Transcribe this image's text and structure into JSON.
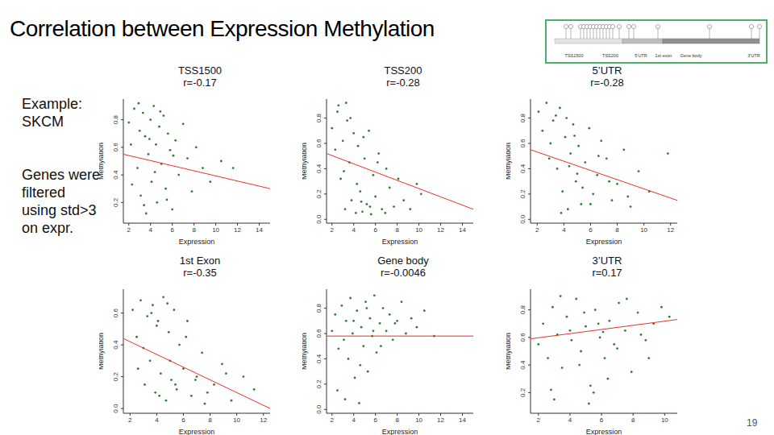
{
  "title": "Correlation between Expression Methylation",
  "side_text": {
    "example": [
      "Example:",
      "SKCM"
    ],
    "note": [
      "Genes were",
      "filtered",
      "using std>3",
      "on expr."
    ]
  },
  "gene_diagram": {
    "labels": [
      "TSS1500",
      "TSS200",
      "5'UTR",
      "1st exon",
      "Gene body",
      "3'UTR"
    ]
  },
  "page": "19",
  "chart_data": [
    {
      "type": "scatter",
      "title": "TSS1500",
      "subtitle": "r=-0.17",
      "x_label": "Expression",
      "y_label": "Methylation",
      "color": "#2e7d32",
      "marker": "circle",
      "x": [
        2.0,
        2.2,
        2.5,
        2.8,
        3.0,
        3.1,
        3.3,
        3.5,
        3.6,
        3.8,
        4.0,
        4.1,
        4.3,
        4.5,
        4.6,
        4.8,
        5.0,
        5.2,
        5.4,
        5.6,
        5.8,
        6.0,
        6.3,
        6.6,
        7.0,
        7.4,
        7.8,
        8.2,
        8.8,
        9.5,
        10.5,
        2.3,
        2.9,
        3.4,
        3.9,
        4.4,
        4.9,
        5.5,
        6.1,
        11.6
      ],
      "values": [
        0.78,
        0.62,
        0.88,
        0.45,
        0.72,
        0.25,
        0.85,
        0.68,
        0.12,
        0.55,
        0.8,
        0.35,
        0.9,
        0.62,
        0.2,
        0.75,
        0.48,
        0.83,
        0.3,
        0.7,
        0.58,
        0.15,
        0.65,
        0.4,
        0.77,
        0.52,
        0.28,
        0.6,
        0.45,
        0.35,
        0.5,
        0.33,
        0.92,
        0.18,
        0.66,
        0.42,
        0.86,
        0.22,
        0.54,
        0.45
      ],
      "trend": {
        "x": [
          1.5,
          15
        ],
        "values": [
          0.55,
          0.3
        ],
        "color": "#e8332a"
      },
      "xlim": [
        1.5,
        15
      ],
      "xticks": [
        2,
        4,
        6,
        8,
        10,
        12,
        14
      ],
      "ylim": [
        0.05,
        0.95
      ],
      "yticks": [
        0.2,
        0.4,
        0.6,
        0.8
      ]
    },
    {
      "type": "scatter",
      "title": "TSS200",
      "subtitle": "r=-0.28",
      "x_label": "Expression",
      "y_label": "Methylation",
      "color": "#2e7d32",
      "marker": "circle",
      "x": [
        2.0,
        2.3,
        2.5,
        2.8,
        3.0,
        3.2,
        3.4,
        3.6,
        3.8,
        4.0,
        4.2,
        4.4,
        4.6,
        4.8,
        5.0,
        5.2,
        5.4,
        5.6,
        5.8,
        6.0,
        6.3,
        6.6,
        7.0,
        7.3,
        7.7,
        8.1,
        8.6,
        9.2,
        9.8,
        2.6,
        3.1,
        3.7,
        4.3,
        4.9,
        5.5,
        6.2,
        6.9,
        10.2,
        3.3,
        4.7
      ],
      "values": [
        0.72,
        0.55,
        0.85,
        0.32,
        0.62,
        0.08,
        0.78,
        0.45,
        0.15,
        0.68,
        0.05,
        0.58,
        0.22,
        0.06,
        0.48,
        0.12,
        0.7,
        0.04,
        0.35,
        0.18,
        0.52,
        0.08,
        0.4,
        0.25,
        0.1,
        0.32,
        0.15,
        0.08,
        0.28,
        0.9,
        0.38,
        0.8,
        0.28,
        0.65,
        0.1,
        0.45,
        0.05,
        0.2,
        0.92,
        0.14
      ],
      "trend": {
        "x": [
          1.5,
          15
        ],
        "values": [
          0.52,
          0.08
        ],
        "color": "#e8332a"
      },
      "xlim": [
        1.5,
        15
      ],
      "xticks": [
        2,
        4,
        6,
        8,
        10,
        12,
        14
      ],
      "ylim": [
        -0.03,
        0.95
      ],
      "yticks": [
        {
          "value": 0,
          "label": "0.0"
        },
        0.2,
        0.4,
        0.6,
        0.8
      ]
    },
    {
      "type": "scatter",
      "title": "5’UTR",
      "subtitle": "r=-0.28",
      "x_label": "Expression",
      "y_label": "Methylation",
      "color": "#2e7d32",
      "marker": "circle",
      "x": [
        2.1,
        2.4,
        2.7,
        3.0,
        3.2,
        3.5,
        3.7,
        3.9,
        4.1,
        4.3,
        4.5,
        4.7,
        4.9,
        5.1,
        5.3,
        5.6,
        5.9,
        6.2,
        6.5,
        6.8,
        7.2,
        7.6,
        8.0,
        8.5,
        9.0,
        9.6,
        10.4,
        11.8,
        2.9,
        3.4,
        3.8,
        4.4,
        4.8,
        5.4,
        6.0,
        6.6,
        7.4,
        8.8,
        4.2,
        5.0
      ],
      "values": [
        0.85,
        0.7,
        0.92,
        0.6,
        0.78,
        0.4,
        0.88,
        0.22,
        0.65,
        0.08,
        0.52,
        0.75,
        0.3,
        0.58,
        0.12,
        0.45,
        0.72,
        0.2,
        0.35,
        0.62,
        0.48,
        0.15,
        0.28,
        0.55,
        0.1,
        0.38,
        0.22,
        0.52,
        0.48,
        0.82,
        0.05,
        0.42,
        0.66,
        0.25,
        0.12,
        0.5,
        0.3,
        0.18,
        0.8,
        0.36
      ],
      "trend": {
        "x": [
          1.5,
          12.5
        ],
        "values": [
          0.55,
          0.15
        ],
        "color": "#e8332a"
      },
      "xlim": [
        1.5,
        12.5
      ],
      "xticks": [
        2,
        4,
        6,
        8,
        10,
        12
      ],
      "ylim": [
        -0.03,
        0.95
      ],
      "yticks": [
        {
          "value": 0,
          "label": "0.0"
        },
        0.2,
        0.4,
        0.6,
        0.8
      ]
    },
    {
      "type": "scatter",
      "title": "1st Exon",
      "subtitle": "r=-0.35",
      "x_label": "Expression",
      "y_label": "Methylation",
      "color": "#2e7d32",
      "marker": "circle",
      "x": [
        2.2,
        2.5,
        2.8,
        3.1,
        3.3,
        3.5,
        3.7,
        3.9,
        4.1,
        4.3,
        4.5,
        4.7,
        4.9,
        5.1,
        5.3,
        5.5,
        5.7,
        6.0,
        6.3,
        6.6,
        7.0,
        7.4,
        7.8,
        8.3,
        8.9,
        9.6,
        10.5,
        11.3,
        3.0,
        3.6,
        4.2,
        4.8,
        5.4,
        6.2,
        6.9,
        7.6,
        2.6,
        4.0,
        5.0,
        9.2
      ],
      "values": [
        0.62,
        0.45,
        0.68,
        0.15,
        0.58,
        0.3,
        0.65,
        0.1,
        0.55,
        0.22,
        0.7,
        0.05,
        0.48,
        0.18,
        0.62,
        0.12,
        0.4,
        0.25,
        0.55,
        0.08,
        0.2,
        0.35,
        0.1,
        0.15,
        0.28,
        0.05,
        0.2,
        0.12,
        0.38,
        0.6,
        0.08,
        0.66,
        0.15,
        0.45,
        0.18,
        0.03,
        0.25,
        0.52,
        0.3,
        0.22
      ],
      "trend": {
        "x": [
          1.5,
          12.5
        ],
        "values": [
          0.44,
          0.0
        ],
        "color": "#e8332a"
      },
      "xlim": [
        1.5,
        12.5
      ],
      "xticks": [
        2,
        4,
        6,
        8,
        10,
        12
      ],
      "ylim": [
        -0.03,
        0.75
      ],
      "yticks": [
        {
          "value": 0,
          "label": "0.0"
        },
        0.2,
        0.4,
        0.6
      ]
    },
    {
      "type": "scatter",
      "title": "Gene body",
      "subtitle": "r=-0.0046",
      "x_label": "Expression",
      "y_label": "Methylation",
      "color": "#2e7d32",
      "marker": "circle",
      "x": [
        2.0,
        2.3,
        2.6,
        2.9,
        3.1,
        3.3,
        3.5,
        3.7,
        3.9,
        4.1,
        4.3,
        4.5,
        4.7,
        4.9,
        5.1,
        5.3,
        5.5,
        5.7,
        5.9,
        6.1,
        6.4,
        6.7,
        7.0,
        7.3,
        7.6,
        8.0,
        8.4,
        8.8,
        9.3,
        9.8,
        10.5,
        11.4,
        3.2,
        4.0,
        4.6,
        5.2,
        5.8,
        6.5,
        2.5,
        7.8
      ],
      "values": [
        0.62,
        0.75,
        0.48,
        0.82,
        0.55,
        0.7,
        0.4,
        0.88,
        0.6,
        0.25,
        0.78,
        0.05,
        0.65,
        0.5,
        0.85,
        0.3,
        0.72,
        0.58,
        0.9,
        0.45,
        0.68,
        0.8,
        0.62,
        0.75,
        0.55,
        0.7,
        0.85,
        0.6,
        0.72,
        0.65,
        0.78,
        0.58,
        0.08,
        0.7,
        0.35,
        0.8,
        0.62,
        0.5,
        0.15,
        0.68
      ],
      "trend": {
        "x": [
          1.5,
          15
        ],
        "values": [
          0.58,
          0.58
        ],
        "color": "#e8332a"
      },
      "xlim": [
        1.5,
        15
      ],
      "xticks": [
        2,
        4,
        6,
        8,
        10,
        12,
        14
      ],
      "ylim": [
        -0.03,
        0.95
      ],
      "yticks": [
        {
          "value": 0,
          "label": "0.0"
        },
        0.2,
        0.4,
        0.6,
        0.8
      ]
    },
    {
      "type": "scatter",
      "title": "3’UTR",
      "subtitle": "r=0.17",
      "x_label": "Expression",
      "y_label": "Methylation",
      "color": "#2e7d32",
      "marker": "circle",
      "x": [
        2.0,
        2.3,
        2.6,
        2.9,
        3.2,
        3.5,
        3.8,
        4.1,
        4.4,
        4.7,
        5.0,
        5.3,
        5.6,
        5.9,
        6.2,
        6.5,
        6.8,
        7.1,
        7.5,
        7.9,
        8.3,
        8.8,
        9.3,
        9.8,
        10.3,
        2.8,
        3.4,
        4.0,
        4.6,
        5.2,
        5.8,
        6.4,
        7.0,
        7.6,
        8.5,
        4.9,
        5.5,
        6.1,
        3.0,
        9.0
      ],
      "values": [
        0.55,
        0.7,
        0.45,
        0.82,
        0.62,
        0.38,
        0.75,
        0.58,
        0.88,
        0.5,
        0.68,
        0.25,
        0.8,
        0.6,
        0.45,
        0.72,
        0.55,
        0.85,
        0.65,
        0.35,
        0.78,
        0.58,
        0.7,
        0.82,
        0.75,
        0.22,
        0.9,
        0.65,
        0.4,
        0.12,
        0.7,
        0.3,
        0.52,
        0.88,
        0.62,
        0.78,
        0.2,
        0.64,
        0.15,
        0.45
      ],
      "trend": {
        "x": [
          1.5,
          10.8
        ],
        "values": [
          0.59,
          0.73
        ],
        "color": "#e8332a"
      },
      "xlim": [
        1.5,
        10.8
      ],
      "xticks": [
        2,
        4,
        6,
        8,
        10
      ],
      "ylim": [
        0.05,
        0.95
      ],
      "yticks": [
        0.2,
        0.4,
        0.6,
        0.8
      ]
    }
  ]
}
